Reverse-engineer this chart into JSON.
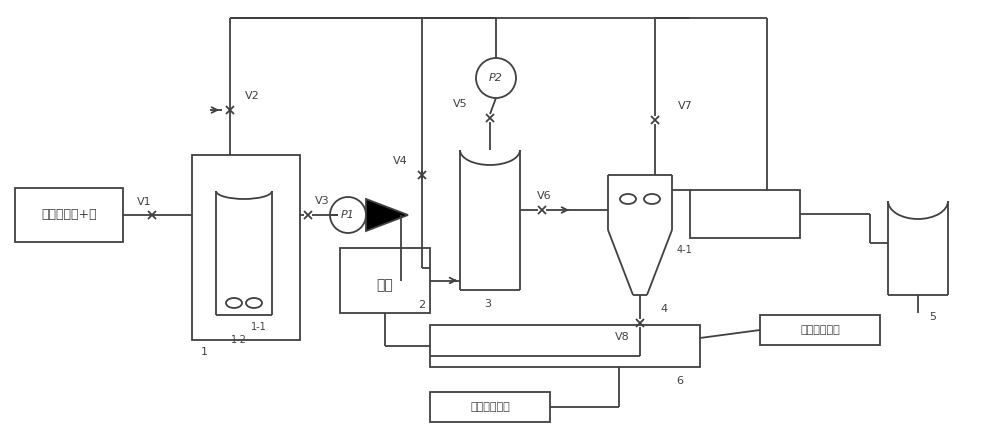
{
  "bg_color": "#ffffff",
  "line_color": "#404040",
  "lw": 1.3,
  "labels": {
    "input_box": "新鲜生物质+水",
    "drying": "烘干",
    "intermediate": "中间相炭微球",
    "solid_fuel": "固体生物燃料",
    "c1": "1",
    "c11": "1-1",
    "c12": "1-2",
    "c2": "2",
    "c3": "3",
    "c4": "4",
    "c41": "4-1",
    "c5": "5",
    "c6": "6",
    "v1": "V1",
    "v2": "V2",
    "v3": "V3",
    "v4": "V4",
    "v5": "V5",
    "v6": "V6",
    "v7": "V7",
    "v8": "V8",
    "p1": "P1",
    "p2": "P2"
  }
}
